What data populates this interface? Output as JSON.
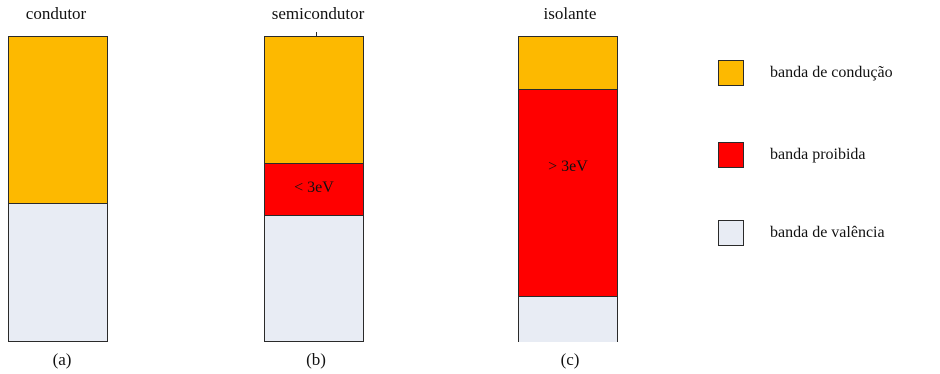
{
  "colors": {
    "conduction": "#FDB900",
    "forbidden": "#FF0000",
    "valence": "#E8ECF4",
    "border": "#2a2a2a"
  },
  "columns": [
    {
      "title": "condutor",
      "label": "(a)",
      "bands": [
        {
          "type": "conduction",
          "fraction": 0.545,
          "text": ""
        },
        {
          "type": "valence",
          "fraction": 0.455,
          "text": ""
        }
      ]
    },
    {
      "title": "semicondutor",
      "label": "(b)",
      "bands": [
        {
          "type": "conduction",
          "fraction": 0.415,
          "text": ""
        },
        {
          "type": "forbidden",
          "fraction": 0.17,
          "text": "< 3eV"
        },
        {
          "type": "valence",
          "fraction": 0.415,
          "text": ""
        }
      ]
    },
    {
      "title": "isolante",
      "label": "(c)",
      "bands": [
        {
          "type": "conduction",
          "fraction": 0.17,
          "text": ""
        },
        {
          "type": "forbidden",
          "fraction": 0.68,
          "text": "> 3eV"
        },
        {
          "type": "valence",
          "fraction": 0.15,
          "text": ""
        }
      ]
    }
  ],
  "legend": [
    {
      "type": "conduction",
      "label": "banda de condução"
    },
    {
      "type": "forbidden",
      "label": "banda proibida"
    },
    {
      "type": "valence",
      "label": "banda de valência"
    }
  ]
}
